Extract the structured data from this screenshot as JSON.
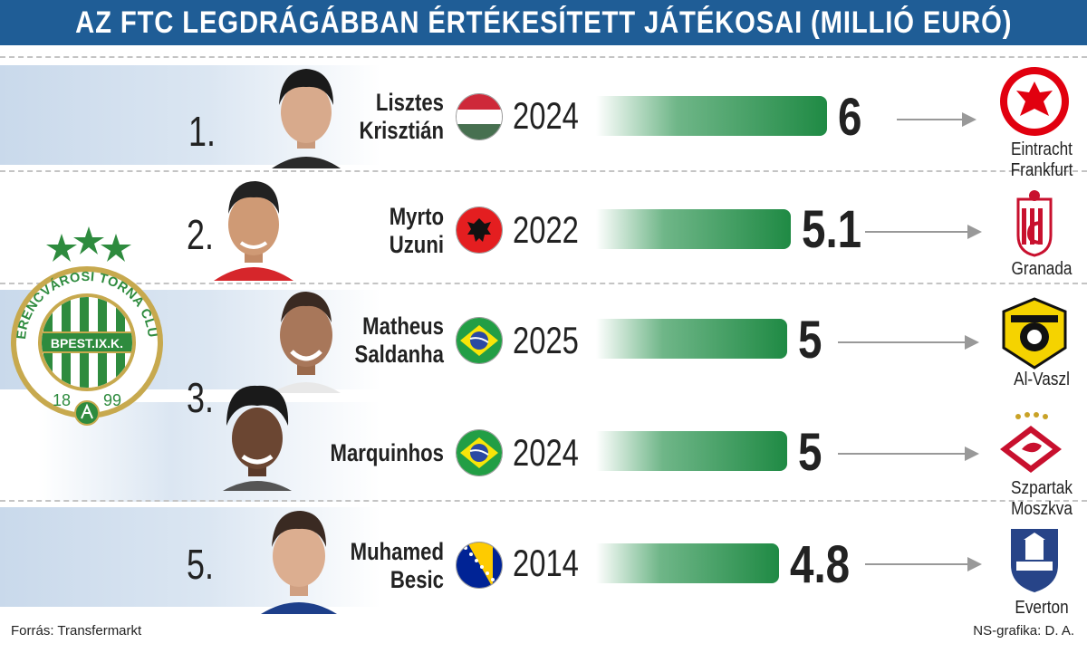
{
  "header": {
    "title": "AZ FTC LEGDRÁGÁBBAN ÉRTÉKESÍTETT JÁTÉKOSAI (MILLIÓ EURÓ)"
  },
  "colors": {
    "header_bg": "#1f5d96",
    "bar": "#1f8a44",
    "band": "#c9d9eb"
  },
  "logo": {
    "text": "FERENCVÁROSI TORNA CLUB",
    "inner_text": "BPEST.IX.K.",
    "year_left": "18",
    "year_right": "99"
  },
  "chart_data": {
    "type": "bar",
    "title": "AZ FTC LEGDRÁGÁBBAN ÉRTÉKESÍTETT JÁTÉKOSAI (MILLIÓ EURÓ)",
    "categories": [
      "Lisztes Krisztián",
      "Myrto Uzuni",
      "Matheus Saldanha",
      "Marquinhos",
      "Muhamed Besic"
    ],
    "values": [
      6,
      5.1,
      5,
      5,
      4.8
    ],
    "value_labels": [
      "6",
      "5.1",
      "5",
      "5",
      "4.8"
    ],
    "years": [
      "2024",
      "2022",
      "2025",
      "2024",
      "2014"
    ],
    "ranks": [
      "1.",
      "2.",
      "3.",
      "",
      "5."
    ],
    "flags": [
      "hungary",
      "albania",
      "brazil",
      "brazil",
      "bosnia"
    ],
    "clubs": [
      "Eintracht Frankfurt",
      "Granada",
      "Al-Vaszl",
      "Szpartak Moszkva",
      "Everton"
    ],
    "xlim": [
      0,
      6
    ]
  },
  "rows": [
    {
      "rank": "1.",
      "name1": "Lisztes",
      "name2": "Krisztián",
      "year": "2024",
      "value": "6",
      "club1": "Eintracht",
      "club2": "Frankfurt",
      "crest": "eintracht-crest-icon"
    },
    {
      "rank": "2.",
      "name1": "Myrto",
      "name2": "Uzuni",
      "year": "2022",
      "value": "5.1",
      "club1": "Granada",
      "club2": "",
      "crest": "granada-crest-icon"
    },
    {
      "rank": "3.",
      "name1": "Matheus",
      "name2": "Saldanha",
      "year": "2025",
      "value": "5",
      "club1": "Al-Vaszl",
      "club2": "",
      "crest": "al-wasl-crest-icon"
    },
    {
      "rank": "",
      "name1": "Marquinhos",
      "name2": "",
      "year": "2024",
      "value": "5",
      "club1": "Szpartak",
      "club2": "Moszkva",
      "crest": "spartak-crest-icon"
    },
    {
      "rank": "5.",
      "name1": "Muhamed",
      "name2": "Besic",
      "year": "2014",
      "value": "4.8",
      "club1": "Everton",
      "club2": "",
      "crest": "everton-crest-icon"
    }
  ],
  "footer": {
    "source": "Forrás: Transfermarkt",
    "credit": "NS-grafika: D. A."
  }
}
